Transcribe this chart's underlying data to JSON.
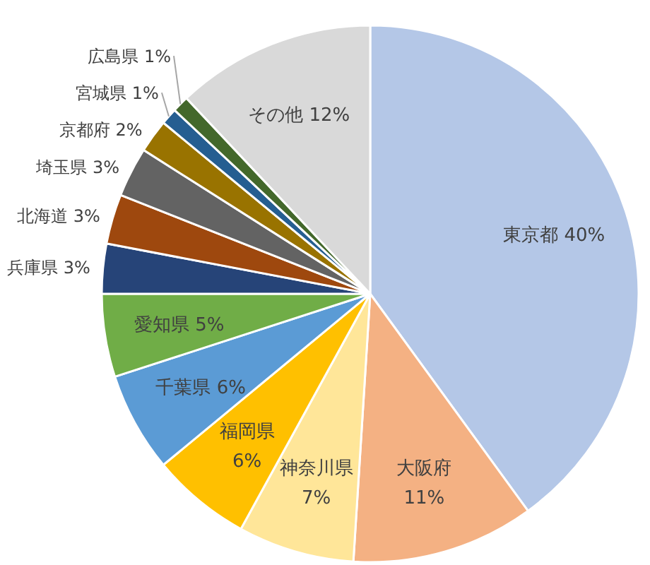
{
  "chart_data": {
    "type": "pie",
    "categories": [
      "東京都",
      "大阪府",
      "神奈川県",
      "福岡県",
      "千葉県",
      "愛知県",
      "兵庫県",
      "北海道",
      "埼玉県",
      "京都府",
      "宮城県",
      "広島県",
      "その他"
    ],
    "values": [
      40,
      11,
      7,
      6,
      6,
      5,
      3,
      3,
      3,
      2,
      1,
      1,
      12
    ],
    "colors": [
      "#b4c7e7",
      "#f4b183",
      "#ffe699",
      "#ffc000",
      "#5b9bd5",
      "#70ad47",
      "#264478",
      "#9e480e",
      "#636363",
      "#997300",
      "#255e91",
      "#43682b",
      "#d9d9d9"
    ],
    "value_labels": [
      "40%",
      "11%",
      "7%",
      "6%",
      "6%",
      "5%",
      "3%",
      "3%",
      "3%",
      "2%",
      "1%",
      "1%",
      "12%"
    ]
  }
}
